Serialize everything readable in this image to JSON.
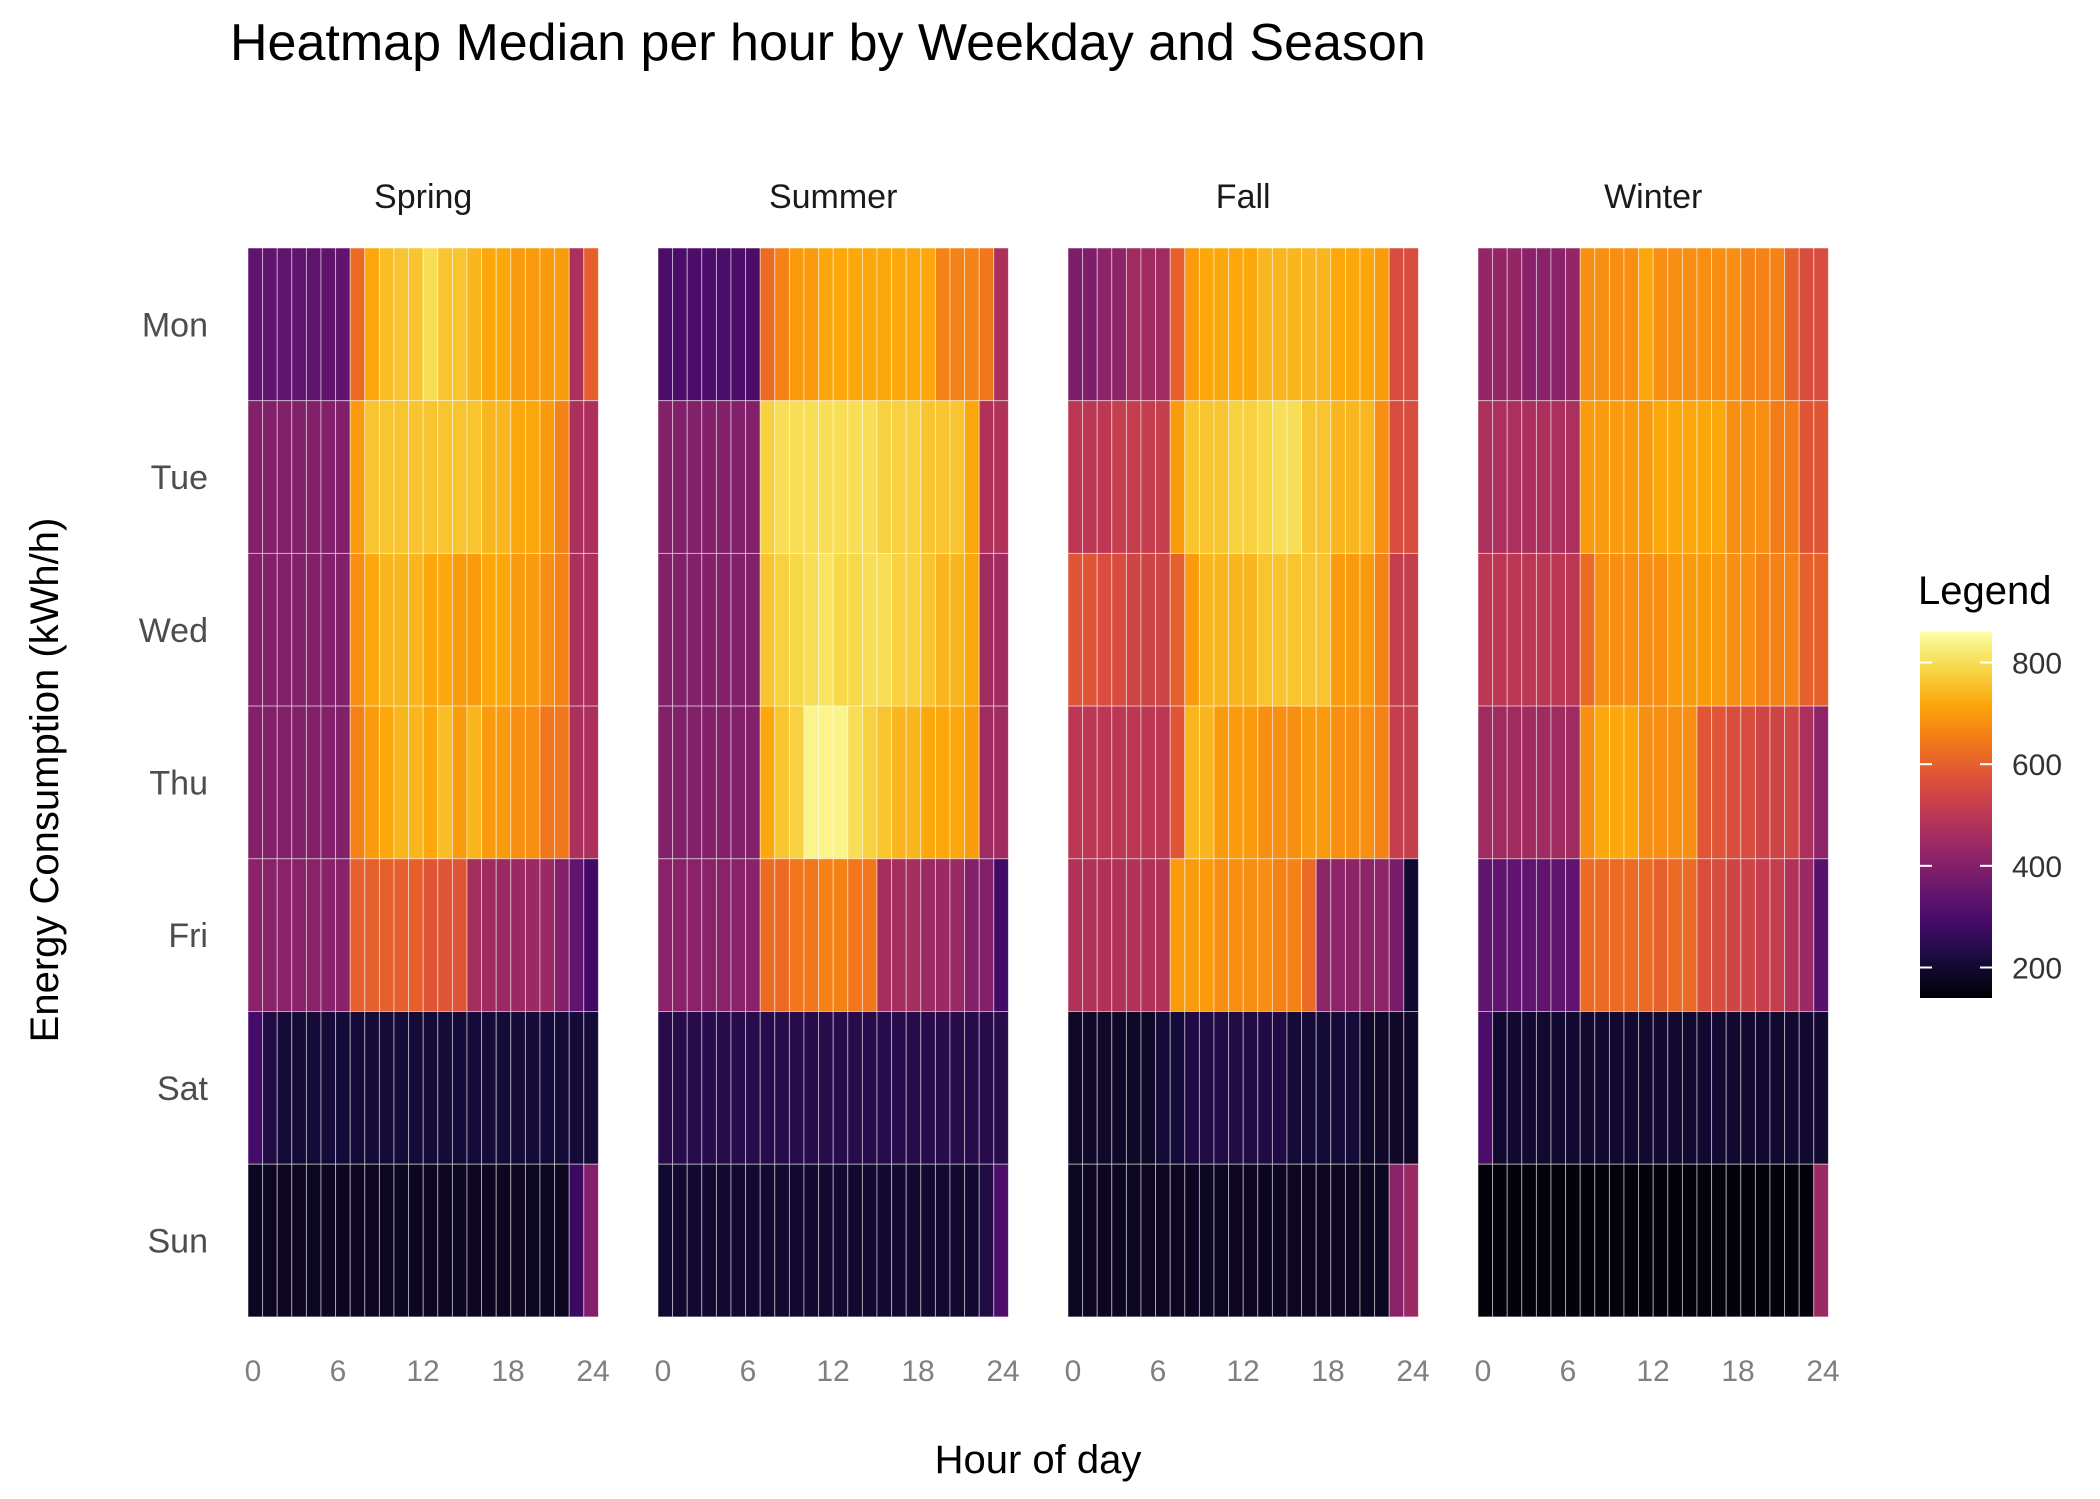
{
  "chart_data": {
    "type": "heatmap",
    "title": "Heatmap Median per hour by Weekday and Season",
    "xlabel": "Hour of day",
    "ylabel": "Energy Consumption (kWh/h)",
    "x_ticks": [
      "0",
      "6",
      "12",
      "18",
      "24"
    ],
    "xlim": [
      0,
      24
    ],
    "days": [
      "Mon",
      "Tue",
      "Wed",
      "Thu",
      "Fri",
      "Sat",
      "Sun"
    ],
    "hours": [
      0,
      1,
      2,
      3,
      4,
      5,
      6,
      7,
      8,
      9,
      10,
      11,
      12,
      13,
      14,
      15,
      16,
      17,
      18,
      19,
      20,
      21,
      22,
      23
    ],
    "colorbar": {
      "title": "Legend",
      "ticks": [
        "200",
        "400",
        "600",
        "800"
      ],
      "range": [
        140,
        860
      ],
      "palette": "inferno"
    },
    "panels": [
      {
        "name": "Spring",
        "values": [
          [
            340,
            340,
            340,
            340,
            340,
            340,
            340,
            620,
            720,
            750,
            760,
            760,
            800,
            760,
            760,
            740,
            720,
            720,
            700,
            700,
            700,
            700,
            470,
            600
          ],
          [
            400,
            400,
            400,
            400,
            400,
            400,
            400,
            700,
            760,
            760,
            760,
            760,
            760,
            760,
            760,
            760,
            740,
            740,
            720,
            720,
            700,
            660,
            470,
            470
          ],
          [
            400,
            400,
            400,
            400,
            400,
            400,
            400,
            680,
            720,
            740,
            740,
            740,
            720,
            720,
            700,
            700,
            720,
            720,
            700,
            700,
            680,
            660,
            470,
            470
          ],
          [
            400,
            400,
            400,
            400,
            400,
            400,
            400,
            660,
            700,
            720,
            740,
            740,
            720,
            750,
            700,
            740,
            700,
            700,
            680,
            680,
            640,
            640,
            470,
            470
          ],
          [
            410,
            410,
            410,
            410,
            410,
            410,
            410,
            600,
            600,
            600,
            600,
            600,
            580,
            580,
            580,
            460,
            450,
            440,
            440,
            440,
            440,
            400,
            340,
            280
          ],
          [
            290,
            230,
            210,
            210,
            210,
            210,
            210,
            210,
            210,
            210,
            210,
            210,
            210,
            210,
            210,
            210,
            210,
            210,
            210,
            210,
            210,
            210,
            210,
            210
          ],
          [
            180,
            180,
            180,
            180,
            180,
            180,
            180,
            180,
            180,
            180,
            180,
            180,
            180,
            180,
            180,
            180,
            180,
            180,
            180,
            180,
            180,
            180,
            270,
            400
          ]
        ]
      },
      {
        "name": "Summer",
        "values": [
          [
            300,
            300,
            300,
            300,
            300,
            300,
            300,
            620,
            660,
            700,
            700,
            720,
            720,
            720,
            720,
            720,
            720,
            720,
            720,
            660,
            660,
            660,
            640,
            470
          ],
          [
            400,
            400,
            400,
            400,
            400,
            400,
            400,
            780,
            800,
            800,
            800,
            800,
            800,
            800,
            800,
            780,
            780,
            780,
            760,
            760,
            760,
            720,
            480,
            480
          ],
          [
            400,
            400,
            400,
            400,
            400,
            400,
            400,
            760,
            780,
            790,
            800,
            810,
            790,
            790,
            800,
            800,
            780,
            780,
            760,
            740,
            740,
            720,
            450,
            450
          ],
          [
            400,
            400,
            400,
            400,
            400,
            400,
            400,
            720,
            760,
            780,
            840,
            840,
            840,
            800,
            780,
            760,
            740,
            740,
            720,
            720,
            720,
            700,
            450,
            450
          ],
          [
            410,
            410,
            410,
            410,
            410,
            410,
            410,
            620,
            620,
            640,
            640,
            660,
            660,
            640,
            640,
            460,
            460,
            460,
            440,
            440,
            440,
            400,
            400,
            280
          ],
          [
            240,
            240,
            240,
            240,
            240,
            240,
            240,
            240,
            240,
            240,
            240,
            240,
            240,
            240,
            240,
            240,
            240,
            240,
            240,
            240,
            240,
            240,
            240,
            240
          ],
          [
            200,
            200,
            200,
            200,
            200,
            200,
            200,
            200,
            200,
            200,
            200,
            200,
            200,
            200,
            200,
            200,
            200,
            200,
            200,
            200,
            200,
            200,
            230,
            300
          ]
        ]
      },
      {
        "name": "Fall",
        "values": [
          [
            390,
            390,
            420,
            420,
            450,
            450,
            450,
            600,
            700,
            720,
            720,
            720,
            720,
            740,
            740,
            740,
            740,
            740,
            720,
            720,
            720,
            700,
            560,
            560
          ],
          [
            500,
            500,
            500,
            520,
            520,
            520,
            520,
            700,
            760,
            760,
            760,
            780,
            780,
            790,
            800,
            800,
            760,
            760,
            740,
            740,
            740,
            680,
            560,
            560
          ],
          [
            580,
            580,
            560,
            560,
            540,
            540,
            540,
            600,
            700,
            740,
            740,
            740,
            740,
            760,
            760,
            760,
            760,
            760,
            700,
            700,
            700,
            660,
            520,
            520
          ],
          [
            500,
            500,
            500,
            500,
            500,
            500,
            500,
            580,
            740,
            740,
            700,
            700,
            700,
            680,
            680,
            680,
            700,
            700,
            680,
            680,
            680,
            660,
            520,
            520
          ],
          [
            480,
            480,
            480,
            480,
            480,
            480,
            480,
            700,
            700,
            700,
            680,
            680,
            680,
            680,
            660,
            660,
            620,
            420,
            420,
            420,
            420,
            420,
            380,
            200
          ],
          [
            190,
            190,
            190,
            190,
            190,
            190,
            210,
            210,
            230,
            230,
            230,
            230,
            230,
            230,
            230,
            210,
            210,
            210,
            210,
            210,
            190,
            190,
            190,
            190
          ],
          [
            180,
            180,
            180,
            180,
            180,
            180,
            180,
            180,
            180,
            180,
            180,
            180,
            180,
            180,
            180,
            180,
            180,
            180,
            180,
            180,
            180,
            180,
            410,
            440
          ]
        ]
      },
      {
        "name": "Winter",
        "values": [
          [
            430,
            430,
            430,
            410,
            410,
            410,
            430,
            680,
            680,
            680,
            680,
            720,
            680,
            680,
            680,
            680,
            680,
            680,
            660,
            660,
            660,
            600,
            560,
            560
          ],
          [
            470,
            470,
            470,
            470,
            470,
            470,
            470,
            700,
            700,
            700,
            700,
            700,
            720,
            720,
            720,
            720,
            720,
            680,
            680,
            680,
            650,
            650,
            580,
            580
          ],
          [
            500,
            500,
            500,
            500,
            500,
            500,
            500,
            620,
            680,
            680,
            680,
            680,
            680,
            700,
            700,
            700,
            700,
            680,
            680,
            660,
            660,
            660,
            600,
            600
          ],
          [
            450,
            450,
            450,
            450,
            450,
            450,
            450,
            680,
            720,
            720,
            720,
            680,
            680,
            680,
            680,
            580,
            580,
            560,
            560,
            540,
            540,
            540,
            470,
            420
          ],
          [
            340,
            340,
            340,
            340,
            340,
            340,
            340,
            620,
            620,
            620,
            620,
            620,
            600,
            620,
            620,
            560,
            560,
            540,
            540,
            520,
            520,
            480,
            440,
            320
          ],
          [
            300,
            200,
            200,
            200,
            200,
            200,
            200,
            200,
            200,
            200,
            200,
            200,
            200,
            200,
            200,
            200,
            200,
            200,
            200,
            200,
            200,
            200,
            200,
            200
          ],
          [
            150,
            150,
            150,
            150,
            150,
            150,
            150,
            150,
            150,
            150,
            150,
            150,
            150,
            150,
            150,
            150,
            150,
            150,
            150,
            150,
            150,
            150,
            150,
            440
          ]
        ]
      }
    ]
  }
}
